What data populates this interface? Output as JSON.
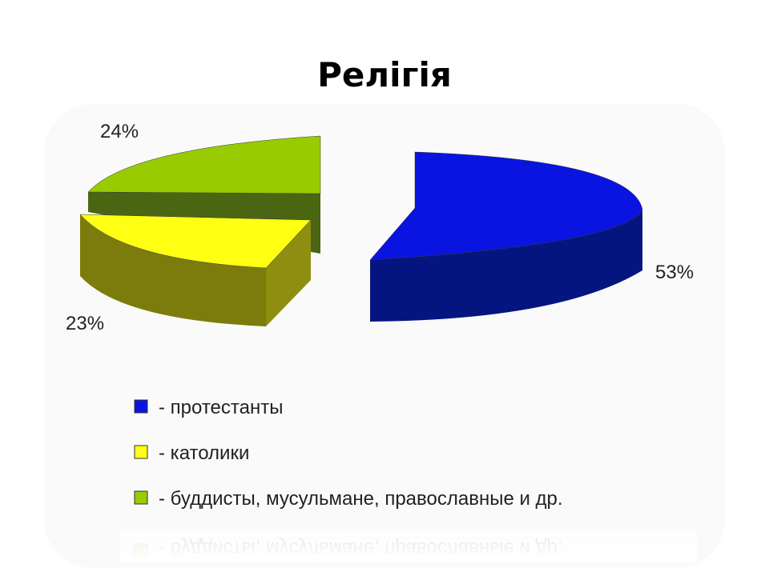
{
  "chart_data": {
    "type": "pie",
    "title": "Релігія",
    "slices": [
      {
        "label": "- протестанты",
        "value": 53,
        "value_label": "53%",
        "color": "#0A14E0",
        "side_color": "#05157F"
      },
      {
        "label": "- католики",
        "value": 23,
        "value_label": "23%",
        "color": "#FFFF14",
        "side_color": "#7C7C0C"
      },
      {
        "label": "- буддисты, мусульмане, православные и др.",
        "value": 24,
        "value_label": "24%",
        "color": "#99CC00",
        "side_color": "#4A6612"
      }
    ],
    "legend_position": "bottom",
    "three_d": true,
    "exploded": true
  }
}
